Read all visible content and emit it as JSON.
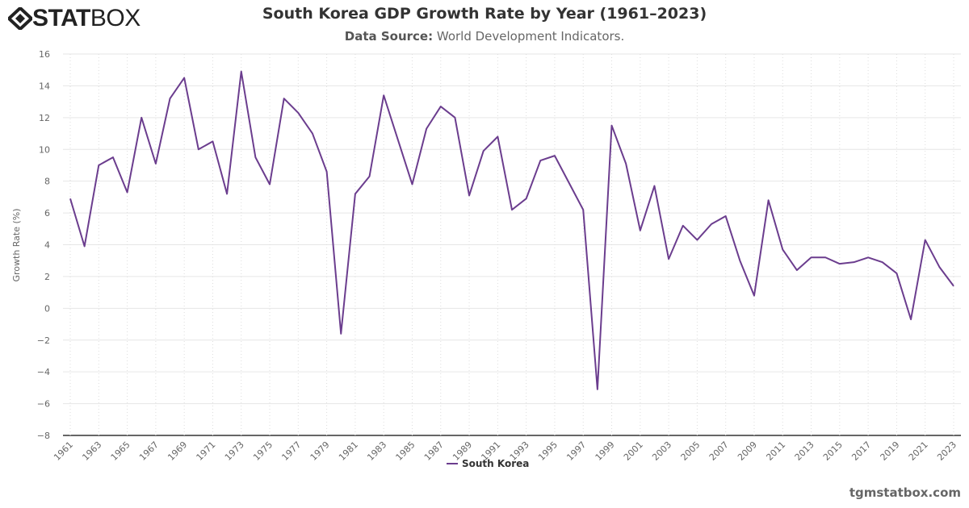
{
  "logo": {
    "text_bold": "STAT",
    "text_light": "BOX"
  },
  "title": "South Korea GDP Growth Rate by Year (1961–2023)",
  "subtitle": {
    "label": "Data Source:",
    "value": "World Development Indicators."
  },
  "credit": "tgmstatbox.com",
  "colors": {
    "line": "#6b3d8e"
  },
  "chart_data": {
    "type": "line",
    "title": "South Korea GDP Growth Rate by Year (1961–2023)",
    "ylabel": "Growth Rate (%)",
    "xlabel": "",
    "ylim": [
      -8,
      16
    ],
    "yticks": [
      -8,
      -6,
      -4,
      -2,
      0,
      2,
      4,
      6,
      8,
      10,
      12,
      14,
      16
    ],
    "xlim": [
      1961,
      2023
    ],
    "grid": true,
    "legend": "bottom-center",
    "x": [
      1961,
      1962,
      1963,
      1964,
      1965,
      1966,
      1967,
      1968,
      1969,
      1970,
      1971,
      1972,
      1973,
      1974,
      1975,
      1976,
      1977,
      1978,
      1979,
      1980,
      1981,
      1982,
      1983,
      1984,
      1985,
      1986,
      1987,
      1988,
      1989,
      1990,
      1991,
      1992,
      1993,
      1994,
      1995,
      1996,
      1997,
      1998,
      1999,
      2000,
      2001,
      2002,
      2003,
      2004,
      2005,
      2006,
      2007,
      2008,
      2009,
      2010,
      2011,
      2012,
      2013,
      2014,
      2015,
      2016,
      2017,
      2018,
      2019,
      2020,
      2021,
      2022,
      2023
    ],
    "series": [
      {
        "name": "South Korea",
        "values": [
          6.9,
          3.9,
          9.0,
          9.5,
          7.3,
          12.0,
          9.1,
          13.2,
          14.5,
          10.0,
          10.5,
          7.2,
          14.9,
          9.5,
          7.8,
          13.2,
          12.3,
          11.0,
          8.6,
          -1.6,
          7.2,
          8.3,
          13.4,
          10.6,
          7.8,
          11.3,
          12.7,
          12.0,
          7.1,
          9.9,
          10.8,
          6.2,
          6.9,
          9.3,
          9.6,
          7.9,
          6.2,
          -5.1,
          11.5,
          9.1,
          4.9,
          7.7,
          3.1,
          5.2,
          4.3,
          5.3,
          5.8,
          3.0,
          0.8,
          6.8,
          3.7,
          2.4,
          3.2,
          3.2,
          2.8,
          2.9,
          3.2,
          2.9,
          2.2,
          -0.7,
          4.3,
          2.6,
          1.4
        ]
      }
    ]
  }
}
